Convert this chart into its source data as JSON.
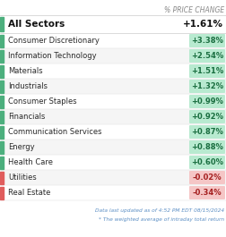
{
  "header_label": "% PRICE CHANGE",
  "all_sectors_label": "All Sectors",
  "all_sectors_value": "+1.61%",
  "sectors": [
    {
      "name": "Consumer Discretionary",
      "value": "+3.38%",
      "change": 3.38
    },
    {
      "name": "Information Technology",
      "value": "+2.54%",
      "change": 2.54
    },
    {
      "name": "Materials",
      "value": "+1.51%",
      "change": 1.51
    },
    {
      "name": "Industrials",
      "value": "+1.32%",
      "change": 1.32
    },
    {
      "name": "Consumer Staples",
      "value": "+0.99%",
      "change": 0.99
    },
    {
      "name": "Financials",
      "value": "+0.92%",
      "change": 0.92
    },
    {
      "name": "Communication Services",
      "value": "+0.87%",
      "change": 0.87
    },
    {
      "name": "Energy",
      "value": "+0.88%",
      "change": 0.88
    },
    {
      "name": "Health Care",
      "value": "+0.60%",
      "change": 0.6
    },
    {
      "name": "Utilities",
      "value": "-0.02%",
      "change": -0.02
    },
    {
      "name": "Real Estate",
      "value": "-0.34%",
      "change": -0.34
    }
  ],
  "positive_side_bar": "#4caf7d",
  "negative_side_bar": "#e05c5c",
  "positive_badge_bg": "#b8ead0",
  "negative_badge_bg": "#f5c6c6",
  "positive_badge_text": "#1a6e40",
  "negative_badge_text": "#a52020",
  "row_bg_even": "#ffffff",
  "row_bg_odd": "#f5f5f5",
  "all_sectors_bar_color": "#4caf7d",
  "text_color": "#2a2a2a",
  "header_color": "#888888",
  "footer_color": "#5b8ec4",
  "bg_color": "#ffffff",
  "footer_text": "Data last updated as of 4:52 PM EDT 08/15/2024",
  "footer_note": "* The weighted average of intraday total return"
}
